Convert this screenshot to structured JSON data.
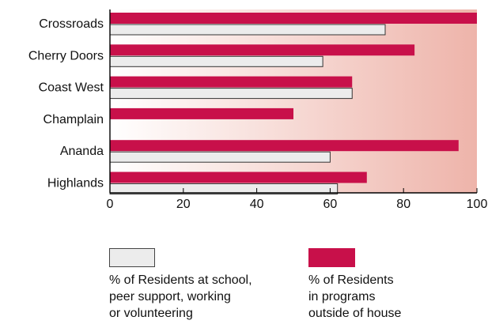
{
  "chart_data": {
    "type": "bar",
    "orientation": "horizontal",
    "categories": [
      "Crossroads",
      "Cherry Doors",
      "Coast West",
      "Champlain",
      "Ananda",
      "Highlands"
    ],
    "series": [
      {
        "name": "% of Residents in programs outside of house",
        "legend_lines": [
          "% of Residents",
          "in programs",
          "outside of house"
        ],
        "color": "#c8104a",
        "values": [
          100,
          83,
          66,
          50,
          95,
          70
        ]
      },
      {
        "name": "% of Residents at school, peer support, working or volunteering",
        "legend_lines": [
          "% of Residents at school,",
          "peer support, working",
          "or volunteering"
        ],
        "color": "#ececec",
        "values": [
          75,
          58,
          66,
          null,
          60,
          62
        ]
      }
    ],
    "x_ticks": [
      0,
      20,
      40,
      60,
      80,
      100
    ],
    "xlim": [
      0,
      100
    ],
    "grid": false,
    "legend_position": "bottom",
    "background_gradient": [
      "#ffffff",
      "#eeb4aa"
    ]
  }
}
